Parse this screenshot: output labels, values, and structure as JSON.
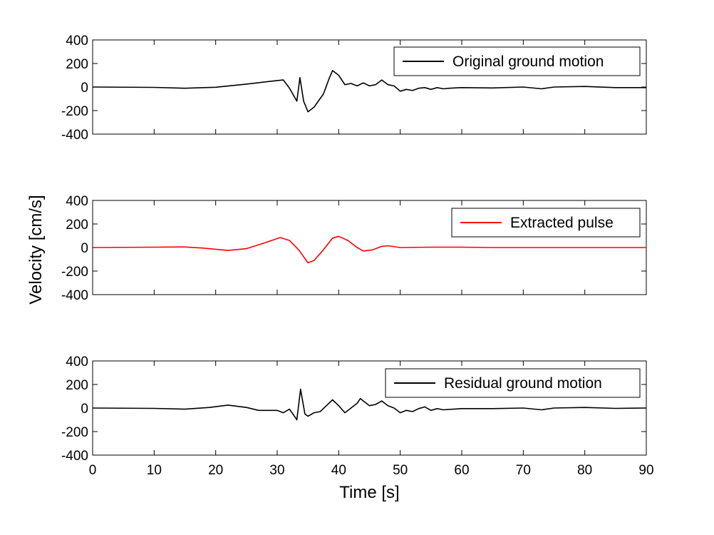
{
  "chart_data": [
    {
      "type": "line",
      "xlim": [
        0,
        90
      ],
      "ylim": [
        -400,
        400
      ],
      "yticks": [
        "400",
        "200",
        "0",
        "-200",
        "-400"
      ],
      "xticks": [],
      "grid": false,
      "legend_position": "top-right",
      "series": [
        {
          "name": "Original ground motion",
          "color": "#000000",
          "points": [
            [
              0,
              0
            ],
            [
              10,
              -3
            ],
            [
              15,
              -10
            ],
            [
              20,
              -2
            ],
            [
              25,
              25
            ],
            [
              30,
              55
            ],
            [
              31,
              60
            ],
            [
              32,
              -10
            ],
            [
              33.2,
              -120
            ],
            [
              33.7,
              80
            ],
            [
              34.3,
              -120
            ],
            [
              35,
              -210
            ],
            [
              36,
              -170
            ],
            [
              37.5,
              -60
            ],
            [
              38.5,
              80
            ],
            [
              39,
              140
            ],
            [
              40,
              100
            ],
            [
              41,
              20
            ],
            [
              42,
              30
            ],
            [
              43,
              10
            ],
            [
              44,
              35
            ],
            [
              45,
              10
            ],
            [
              46,
              20
            ],
            [
              47,
              60
            ],
            [
              48,
              20
            ],
            [
              49,
              10
            ],
            [
              50,
              -35
            ],
            [
              51,
              -20
            ],
            [
              52,
              -30
            ],
            [
              53,
              -10
            ],
            [
              54,
              -5
            ],
            [
              55,
              -20
            ],
            [
              56,
              -5
            ],
            [
              57,
              -15
            ],
            [
              58,
              -10
            ],
            [
              60,
              -5
            ],
            [
              65,
              -8
            ],
            [
              70,
              0
            ],
            [
              73,
              -15
            ],
            [
              75,
              0
            ],
            [
              80,
              5
            ],
            [
              85,
              -5
            ],
            [
              90,
              -5
            ]
          ]
        }
      ]
    },
    {
      "type": "line",
      "xlim": [
        0,
        90
      ],
      "ylim": [
        -400,
        400
      ],
      "yticks": [
        "400",
        "200",
        "0",
        "-200",
        "-400"
      ],
      "xticks": [],
      "grid": false,
      "legend_position": "top-right",
      "series": [
        {
          "name": "Extracted pulse",
          "color": "#ff0000",
          "points": [
            [
              0,
              0
            ],
            [
              10,
              3
            ],
            [
              15,
              5
            ],
            [
              18,
              -5
            ],
            [
              22,
              -25
            ],
            [
              25,
              -10
            ],
            [
              28,
              40
            ],
            [
              30.5,
              85
            ],
            [
              32,
              60
            ],
            [
              33.5,
              -20
            ],
            [
              35,
              -130
            ],
            [
              36,
              -110
            ],
            [
              37.5,
              -20
            ],
            [
              39,
              80
            ],
            [
              40,
              95
            ],
            [
              41.5,
              60
            ],
            [
              43,
              0
            ],
            [
              44,
              -30
            ],
            [
              45.5,
              -20
            ],
            [
              47,
              10
            ],
            [
              48,
              15
            ],
            [
              50,
              0
            ],
            [
              55,
              3
            ],
            [
              60,
              3
            ],
            [
              65,
              0
            ],
            [
              70,
              0
            ],
            [
              90,
              0
            ]
          ]
        }
      ]
    },
    {
      "type": "line",
      "xlim": [
        0,
        90
      ],
      "ylim": [
        -400,
        400
      ],
      "yticks": [
        "400",
        "200",
        "0",
        "-200",
        "-400"
      ],
      "xticks": [
        "0",
        "10",
        "20",
        "30",
        "40",
        "50",
        "60",
        "70",
        "80",
        "90"
      ],
      "xlabel": "Time [s]",
      "grid": false,
      "legend_position": "top-right",
      "series": [
        {
          "name": "Residual ground motion",
          "color": "#000000",
          "points": [
            [
              0,
              0
            ],
            [
              10,
              -3
            ],
            [
              15,
              -10
            ],
            [
              19,
              5
            ],
            [
              22,
              25
            ],
            [
              25,
              5
            ],
            [
              27,
              -20
            ],
            [
              30,
              -20
            ],
            [
              31,
              -40
            ],
            [
              32,
              -10
            ],
            [
              33.2,
              -100
            ],
            [
              33.8,
              160
            ],
            [
              34.5,
              -50
            ],
            [
              35,
              -70
            ],
            [
              36,
              -40
            ],
            [
              37,
              -30
            ],
            [
              38,
              20
            ],
            [
              39,
              70
            ],
            [
              40,
              20
            ],
            [
              41,
              -40
            ],
            [
              42,
              0
            ],
            [
              43,
              40
            ],
            [
              43.5,
              80
            ],
            [
              44,
              60
            ],
            [
              45,
              20
            ],
            [
              46,
              30
            ],
            [
              47,
              60
            ],
            [
              48,
              20
            ],
            [
              49,
              0
            ],
            [
              50,
              -40
            ],
            [
              51,
              -20
            ],
            [
              52,
              -30
            ],
            [
              53,
              -5
            ],
            [
              54,
              10
            ],
            [
              55,
              -20
            ],
            [
              56,
              -5
            ],
            [
              57,
              -15
            ],
            [
              60,
              -5
            ],
            [
              65,
              -5
            ],
            [
              70,
              0
            ],
            [
              73,
              -15
            ],
            [
              75,
              0
            ],
            [
              80,
              5
            ],
            [
              85,
              -3
            ],
            [
              90,
              0
            ]
          ]
        }
      ]
    }
  ],
  "ylabel": "Velocity [cm/s]"
}
